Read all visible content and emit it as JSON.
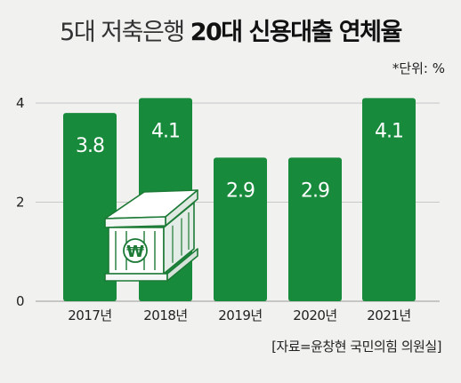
{
  "header": {
    "title_light": "5대 저축은행",
    "title_bold": "20대 신용대출 연체율",
    "unit": "*단위: %"
  },
  "source": "[자료=윤창현 국민의힘 의원실]",
  "colors": {
    "bar": "#188a3c",
    "grid": "#c8c8c8",
    "background": "#f1f1ef"
  },
  "chart_data": {
    "type": "bar",
    "categories": [
      "2017년",
      "2018년",
      "2019년",
      "2020년",
      "2021년"
    ],
    "values": [
      3.8,
      4.1,
      2.9,
      2.9,
      4.1
    ],
    "value_labels": [
      "3.8",
      "4.1",
      "2.9",
      "2.9",
      "4.1"
    ],
    "ylim": [
      0,
      4.2
    ],
    "yticks": [
      0,
      2,
      4
    ],
    "ytick_labels": [
      "0",
      "2",
      "4"
    ],
    "grid": true
  },
  "decoration": {
    "icon": "bank-building-icon",
    "symbol": "₩"
  }
}
